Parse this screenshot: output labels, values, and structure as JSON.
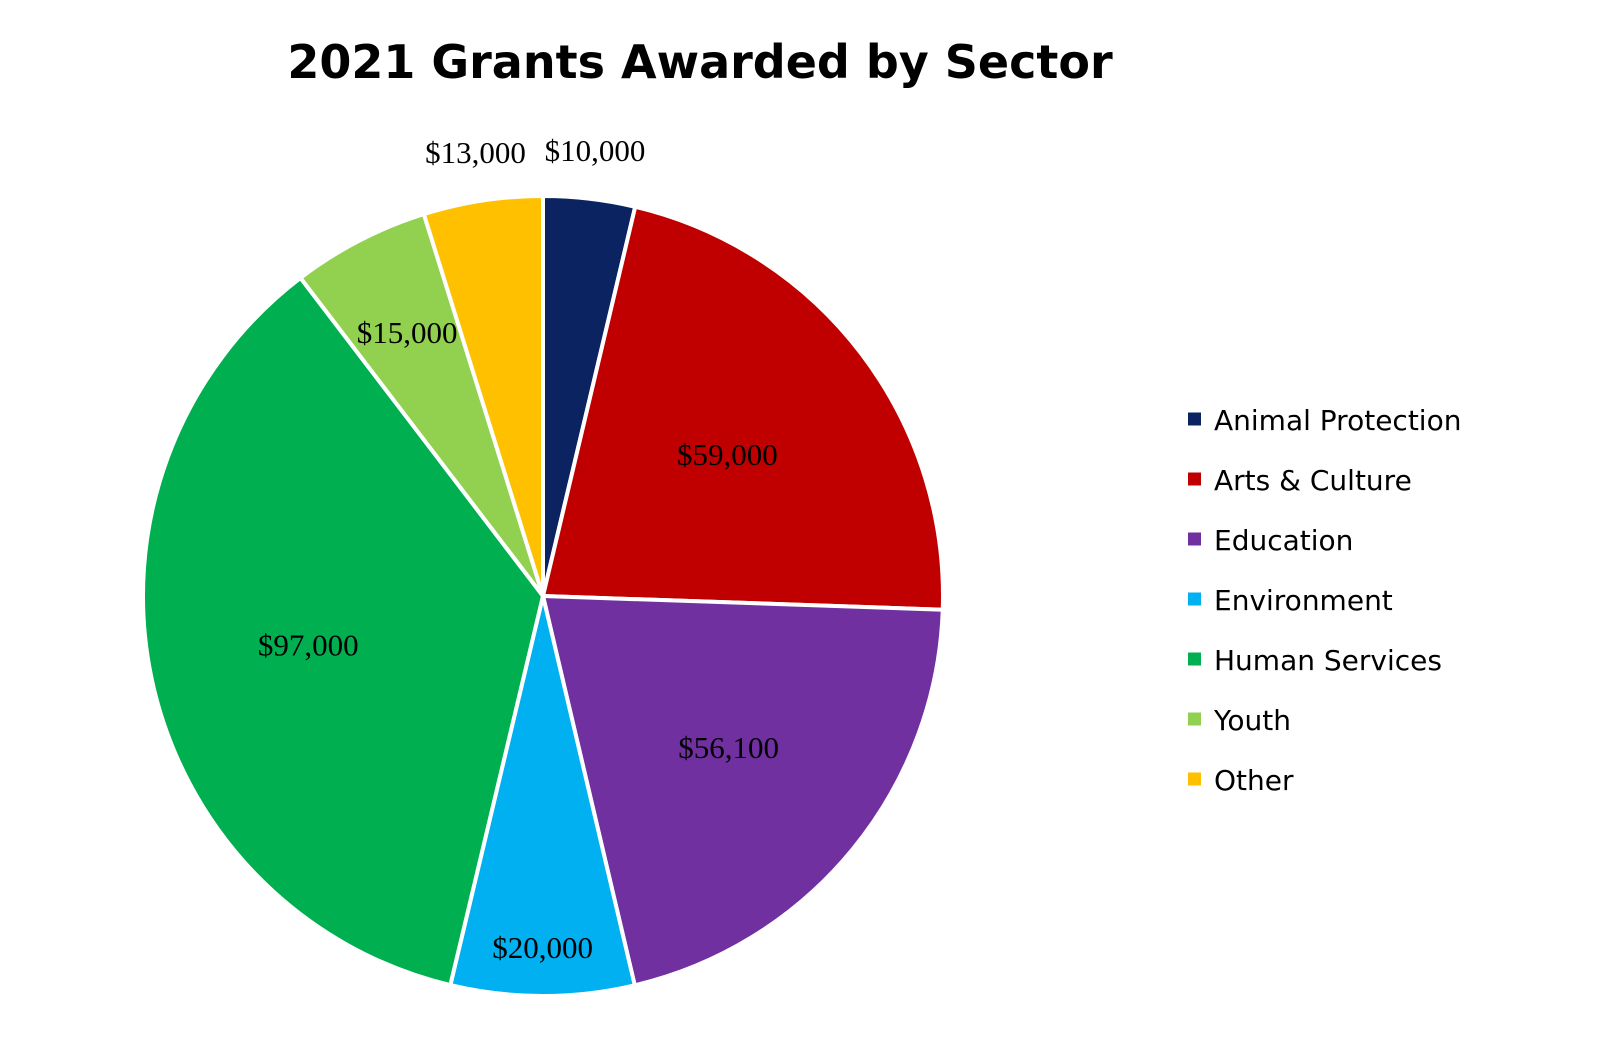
{
  "chart_data": {
    "type": "pie",
    "title": "2021 Grants Awarded by Sector",
    "start_angle": "12 o'clock, clockwise",
    "legend_position": "right",
    "slices": [
      {
        "label": "Animal Protection",
        "value": 10000,
        "value_label": "$10,000",
        "color": "#0b2461"
      },
      {
        "label": "Arts & Culture",
        "value": 59000,
        "value_label": "$59,000",
        "color": "#c00000"
      },
      {
        "label": "Education",
        "value": 56100,
        "value_label": "$56,100",
        "color": "#7030a0"
      },
      {
        "label": "Environment",
        "value": 20000,
        "value_label": "$20,000",
        "color": "#00b0f0"
      },
      {
        "label": "Human Services",
        "value": 97000,
        "value_label": "$97,000",
        "color": "#00b050"
      },
      {
        "label": "Youth",
        "value": 15000,
        "value_label": "$15,000",
        "color": "#92d050"
      },
      {
        "label": "Other",
        "value": 13000,
        "value_label": "$13,000",
        "color": "#ffc000"
      }
    ]
  }
}
